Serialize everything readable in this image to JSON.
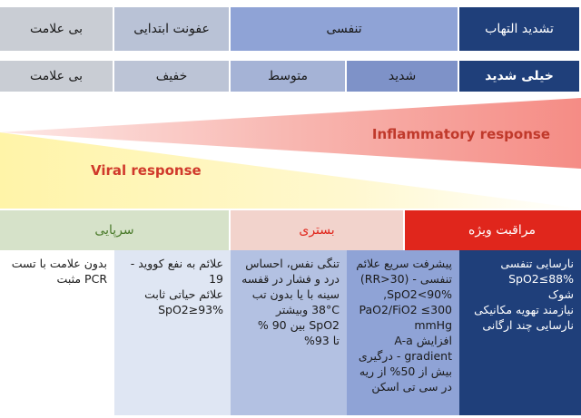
{
  "phase_row": [
    {
      "label": "تشدید التهاب",
      "color": "#1f3f7a",
      "text_color": "#ffffff"
    },
    {
      "label": "تنفسی",
      "color": "#8fa3d6",
      "text_color": "#1a1a1a"
    },
    {
      "label": "عفونت ابتدایی",
      "color": "#b9c2d6",
      "text_color": "#1a1a1a"
    },
    {
      "label": "بی علامت",
      "color": "#c9cdd4",
      "text_color": "#1a1a1a"
    }
  ],
  "severity_row": [
    {
      "label": "خیلی شدید",
      "color": "#1f3f7a",
      "text_color": "#ffffff"
    },
    {
      "label": "شدید",
      "color": "#7e92c8",
      "text_color": "#1a1a1a"
    },
    {
      "label": "متوسط",
      "color": "#a5b3d6",
      "text_color": "#1a1a1a"
    },
    {
      "label": "خفیف",
      "color": "#bcc4d6",
      "text_color": "#1a1a1a"
    },
    {
      "label": "بی علامت",
      "color": "#c9cdd4",
      "text_color": "#1a1a1a"
    }
  ],
  "wedges": {
    "inflammatory_label": "Inflammatory response",
    "viral_label": "Viral response",
    "inflammatory_color": "#c0392b",
    "viral_color": "#d0392b"
  },
  "care_levels": [
    {
      "label": "مراقبت ویژه",
      "color": "#e0261c",
      "text_color": "#ffffff"
    },
    {
      "label": "بستری",
      "color": "#f2d3cc",
      "text_color": "#e0261c"
    },
    {
      "label": "سرپایی",
      "color": "#d6e2c9",
      "text_color": "#4a7a2a"
    }
  ],
  "columns": [
    {
      "color": "#1f3f7a",
      "text_color": "#ffffff",
      "lines": [
        "نارسایی تنفسی",
        "SpO2≤88%",
        "شوک",
        "نیازمند تهویه مکانیکی",
        "نارسایی چند ارگانی"
      ]
    },
    {
      "color": "#8fa3d6",
      "text_color": "#1a1a1a",
      "lines": [
        "پیشرفت سریع علائم",
        "تنفسی - (RR>30)",
        "SpO2<90%,",
        "PaO2/FiO2 ≤300",
        "mmHg",
        "افزایش A-a",
        "gradient - درگیری",
        "بیش از 50% از ریه",
        "در سی تی اسکن"
      ]
    },
    {
      "color": "#b3c1e2",
      "text_color": "#1a1a1a",
      "lines": [
        "تنگی نفس، احساس",
        "درد و فشار در قفسه",
        "سینه با یا بدون تب",
        "38°C وبیشتر",
        "SpO2 بین 90 %",
        "تا 93%"
      ]
    },
    {
      "color": "#dfe6f3",
      "text_color": "#1a1a1a",
      "lines": [
        "علائم به نفع کووید -",
        "19",
        "علائم حیاتی ثابت",
        "SpO2≥93%"
      ]
    },
    {
      "color": "#ffffff",
      "text_color": "#1a1a1a",
      "lines": [
        "بدون علامت با تست",
        "PCR مثبت"
      ]
    }
  ]
}
